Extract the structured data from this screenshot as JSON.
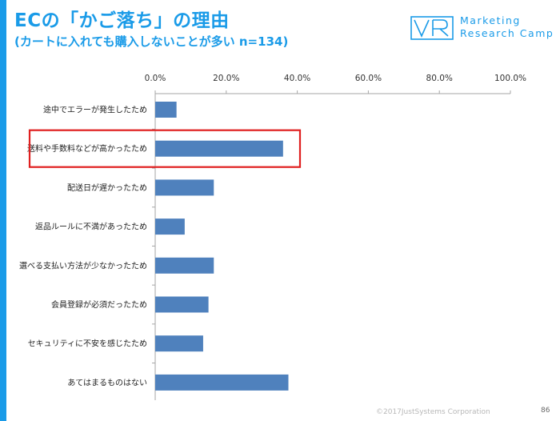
{
  "header": {
    "title": "ECの「かご落ち」の理由",
    "subtitle": "(カートに入れても購入しないことが多い n=134)"
  },
  "logo": {
    "mark": "VR",
    "line1": "Marketing",
    "line2": "Research Camp"
  },
  "chart_data": {
    "type": "bar",
    "orientation": "horizontal",
    "categories": [
      "途中でエラーが発生したため",
      "送料や手数料などが高かったため",
      "配送日が遅かったため",
      "返品ルールに不満があったため",
      "選べる支払い方法が少なかったため",
      "会員登録が必須だったため",
      "セキュリティに不安を感じたため",
      "あてはまるものはない"
    ],
    "values": [
      6.0,
      36.0,
      16.5,
      8.3,
      16.5,
      15.0,
      13.5,
      37.5
    ],
    "xlim": [
      0,
      100
    ],
    "ticks": [
      "0.0%",
      "20.0%",
      "40.0%",
      "60.0%",
      "80.0%",
      "100.0%"
    ],
    "tick_values": [
      0,
      20,
      40,
      60,
      80,
      100
    ],
    "axis_position": "top",
    "bar_color": "#4f81bd",
    "highlight_index": 1,
    "highlight_color": "#e02020"
  },
  "footer": {
    "copyright": "©2017JustSystems Corporation",
    "page": "86"
  }
}
